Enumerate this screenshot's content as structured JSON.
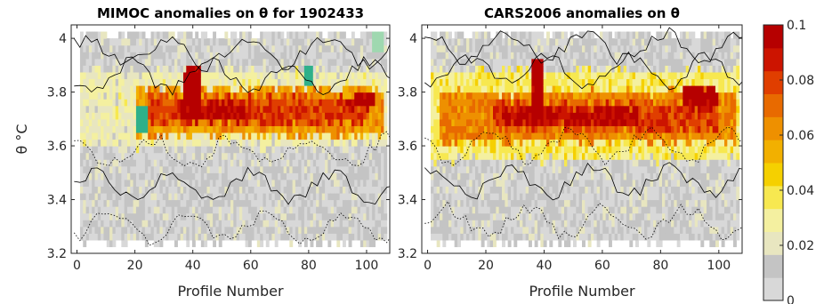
{
  "chart_data": [
    {
      "type": "heatmap",
      "title": "MIMOC anomalies on θ  for 1902433",
      "xlabel": "Profile Number",
      "ylabel": "θ °C",
      "xlim": [
        -2,
        108
      ],
      "ylim": [
        3.2,
        4.05
      ],
      "xticks": [
        "0",
        "20",
        "40",
        "60",
        "80",
        "100"
      ],
      "yticks": [
        "3.2",
        "3.4",
        "3.6",
        "3.8",
        "4"
      ],
      "grid": false,
      "contours": "solid and dotted black contour lines",
      "anomaly_bands": [
        {
          "profile_range": [
            1,
            107
          ],
          "theta_range": [
            3.24,
            4.02
          ],
          "value": 0.01
        },
        {
          "profile_range": [
            1,
            107
          ],
          "theta_range": [
            3.6,
            3.88
          ],
          "value": 0.025
        },
        {
          "profile_range": [
            20,
            106
          ],
          "theta_range": [
            3.64,
            3.82
          ],
          "value": 0.06
        },
        {
          "profile_range": [
            24,
            100
          ],
          "theta_range": [
            3.68,
            3.78
          ],
          "value": 0.08
        },
        {
          "profile_range": [
            36,
            58
          ],
          "theta_range": [
            3.7,
            3.76
          ],
          "value": 0.095
        },
        {
          "profile_range": [
            37,
            43
          ],
          "theta_range": [
            3.7,
            3.9
          ],
          "value": 0.1
        },
        {
          "profile_range": [
            93,
            103
          ],
          "theta_range": [
            3.74,
            3.8
          ],
          "value": 0.1
        }
      ],
      "negative_patches": [
        {
          "profile": 22,
          "theta": 3.7,
          "value": -0.02
        },
        {
          "profile": 80,
          "theta": 3.87,
          "value": -0.02
        },
        {
          "profile": 104,
          "theta": 3.98,
          "value": -0.01
        }
      ]
    },
    {
      "type": "heatmap",
      "title": "CARS2006 anomalies on θ",
      "xlabel": "Profile Number",
      "ylabel": "",
      "xlim": [
        -2,
        108
      ],
      "ylim": [
        3.2,
        4.05
      ],
      "xticks": [
        "0",
        "20",
        "40",
        "60",
        "80",
        "100"
      ],
      "yticks": [
        "3.2",
        "3.4",
        "3.6",
        "3.8",
        "4"
      ],
      "grid": false,
      "contours": "solid and dotted black contour lines",
      "anomaly_bands": [
        {
          "profile_range": [
            1,
            107
          ],
          "theta_range": [
            3.24,
            4.02
          ],
          "value": 0.01
        },
        {
          "profile_range": [
            1,
            107
          ],
          "theta_range": [
            3.55,
            3.88
          ],
          "value": 0.035
        },
        {
          "profile_range": [
            4,
            106
          ],
          "theta_range": [
            3.62,
            3.8
          ],
          "value": 0.065
        },
        {
          "profile_range": [
            22,
            100
          ],
          "theta_range": [
            3.66,
            3.76
          ],
          "value": 0.08
        },
        {
          "profile_range": [
            26,
            72
          ],
          "theta_range": [
            3.68,
            3.74
          ],
          "value": 0.095
        },
        {
          "profile_range": [
            36,
            40
          ],
          "theta_range": [
            3.7,
            3.92
          ],
          "value": 0.1
        },
        {
          "profile_range": [
            88,
            100
          ],
          "theta_range": [
            3.74,
            3.82
          ],
          "value": 0.1
        }
      ],
      "negative_patches": []
    }
  ],
  "colorbar": {
    "ticks": [
      "0.1",
      "0.08",
      "0.06",
      "0.04",
      "0.02",
      "0"
    ],
    "range": [
      0,
      0.1
    ],
    "colors": [
      "#d8d8d8",
      "#c4c4c4",
      "#e8e6c0",
      "#f4f0a0",
      "#f7e850",
      "#f5d000",
      "#f2b000",
      "#ee9000",
      "#e86a00",
      "#e03e00",
      "#cc1400",
      "#b60000"
    ]
  }
}
